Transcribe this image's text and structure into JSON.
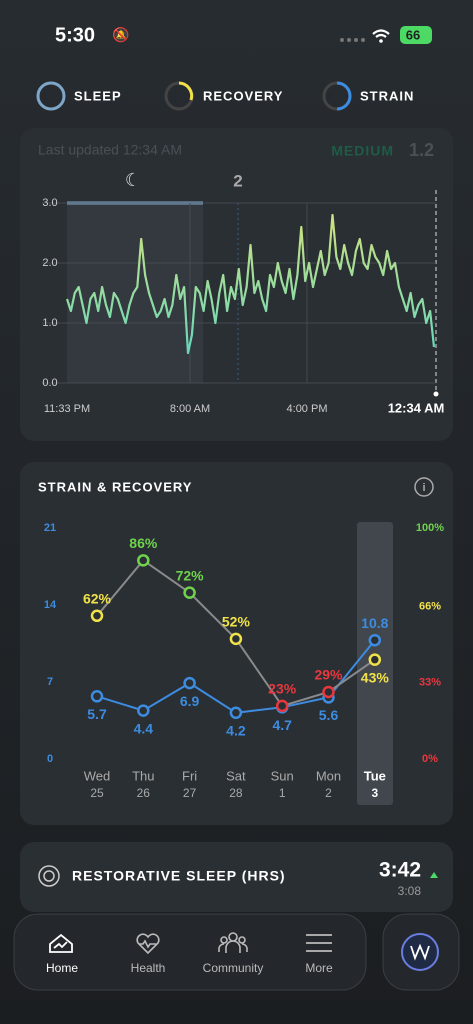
{
  "status": {
    "time": "5:30",
    "battery": "66"
  },
  "tabs": [
    "SLEEP",
    "RECOVERY",
    "STRAIN"
  ],
  "strain_card": {
    "updated": "Last updated 12:34 AM",
    "level": "MEDIUM",
    "score": "1.2",
    "marker": "2",
    "chart_data": {
      "type": "line",
      "x_labels": [
        "11:33 PM",
        "8:00 AM",
        "4:00 PM",
        "12:34 AM"
      ],
      "ylim": [
        0,
        3
      ],
      "yticks": [
        {
          "value": 0,
          "label": "0.0"
        },
        {
          "value": 1,
          "label": "1.0"
        },
        {
          "value": 2,
          "label": "2.0"
        },
        {
          "value": 3,
          "label": "3.0"
        }
      ],
      "gradient": [
        "#4fd6c8",
        "#d9e27a"
      ],
      "values": [
        1.4,
        1.2,
        1.5,
        1.6,
        1.3,
        1.0,
        1.4,
        1.5,
        1.2,
        1.6,
        1.3,
        1.1,
        1.5,
        1.4,
        1.2,
        1.0,
        1.3,
        1.5,
        1.6,
        2.4,
        1.8,
        1.5,
        1.3,
        1.1,
        1.2,
        1.4,
        1.1,
        1.3,
        1.8,
        1.4,
        1.6,
        0.5,
        0.8,
        1.6,
        1.5,
        1.2,
        1.7,
        1.4,
        1.0,
        1.5,
        1.8,
        1.2,
        1.6,
        1.4,
        1.9,
        1.3,
        1.6,
        2.3,
        1.5,
        1.7,
        1.4,
        1.2,
        1.8,
        1.6,
        2.0,
        1.7,
        1.5,
        1.9,
        1.4,
        1.8,
        2.6,
        1.7,
        2.0,
        1.6,
        1.9,
        2.2,
        1.8,
        2.0,
        2.8,
        2.1,
        1.9,
        2.3,
        2.0,
        1.8,
        2.2,
        2.4,
        2.0,
        1.9,
        2.3,
        2.1,
        2.0,
        1.8,
        2.2,
        1.9,
        2.0,
        1.6,
        1.4,
        1.2,
        1.5,
        1.1,
        1.3,
        1.4,
        1.0,
        1.2,
        0.6
      ]
    }
  },
  "sr_card": {
    "title": "STRAIN & RECOVERY",
    "chart_data": {
      "type": "line",
      "categories": [
        "Wed",
        "Thu",
        "Fri",
        "Sat",
        "Sun",
        "Mon",
        "Tue"
      ],
      "dates": [
        "25",
        "26",
        "27",
        "28",
        "1",
        "2",
        "3"
      ],
      "ylim": [
        0,
        21
      ],
      "yticks": [
        0,
        7,
        14,
        21
      ],
      "y2lim": [
        0,
        100
      ],
      "y2ticks": [
        {
          "value": 0,
          "label": "0%"
        },
        {
          "value": 33,
          "label": "33%"
        },
        {
          "value": 66,
          "label": "66%"
        },
        {
          "value": 100,
          "label": "100%"
        }
      ],
      "y2tick_colors": [
        "#e8383d",
        "#e8383d",
        "#f2e24a",
        "#6fd34c"
      ],
      "series": [
        {
          "name": "Strain",
          "color": "#3d8ce0",
          "values": [
            5.7,
            4.4,
            6.9,
            4.2,
            4.7,
            5.6,
            10.8
          ]
        },
        {
          "name": "Recovery",
          "color": "#8a8a8a",
          "axis": "y2",
          "values": [
            62,
            86,
            72,
            52,
            23,
            29,
            43
          ],
          "value_labels": [
            "62%",
            "86%",
            "72%",
            "52%",
            "23%",
            "29%",
            "43%"
          ],
          "point_colors": [
            "#f2e24a",
            "#6fd34c",
            "#6fd34c",
            "#f2e24a",
            "#e8383d",
            "#e8383d",
            "#f2e24a"
          ]
        }
      ]
    }
  },
  "restorative": {
    "title": "RESTORATIVE SLEEP (HRS)",
    "value": "3:42",
    "baseline": "3:08"
  },
  "nav": [
    "Home",
    "Health",
    "Community",
    "More"
  ]
}
